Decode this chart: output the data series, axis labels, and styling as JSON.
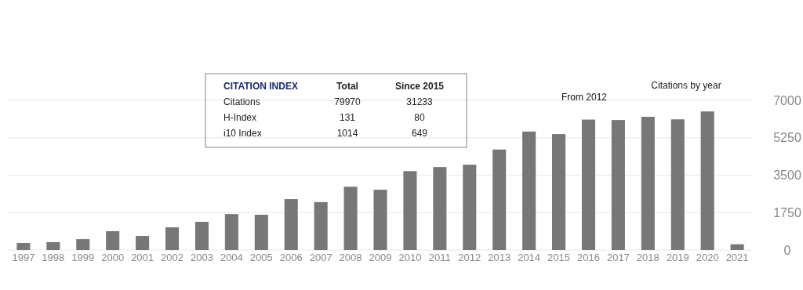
{
  "chart_data": {
    "type": "bar",
    "title": "Citations by year",
    "categories": [
      "1997",
      "1998",
      "1999",
      "2000",
      "2001",
      "2002",
      "2003",
      "2004",
      "2005",
      "2006",
      "2007",
      "2008",
      "2009",
      "2010",
      "2011",
      "2012",
      "2013",
      "2014",
      "2015",
      "2016",
      "2017",
      "2018",
      "2019",
      "2020",
      "2021"
    ],
    "values": [
      330,
      370,
      510,
      880,
      660,
      1060,
      1320,
      1680,
      1650,
      2380,
      2240,
      2960,
      2820,
      3690,
      3880,
      3990,
      4700,
      5540,
      5420,
      6100,
      6080,
      6230,
      6110,
      6480,
      270
    ],
    "color": "#777777",
    "ylim": [
      0,
      7000
    ],
    "yticks": [
      0,
      1750,
      3500,
      5250,
      7000
    ],
    "grid": "y",
    "annotations": [
      "From 2012",
      "CITATION INDEX",
      "Total",
      "Since 2015",
      "Citations",
      "79970",
      "31233",
      "H-Index",
      "131",
      "80",
      "i10 Index",
      "1014",
      "649"
    ]
  }
}
